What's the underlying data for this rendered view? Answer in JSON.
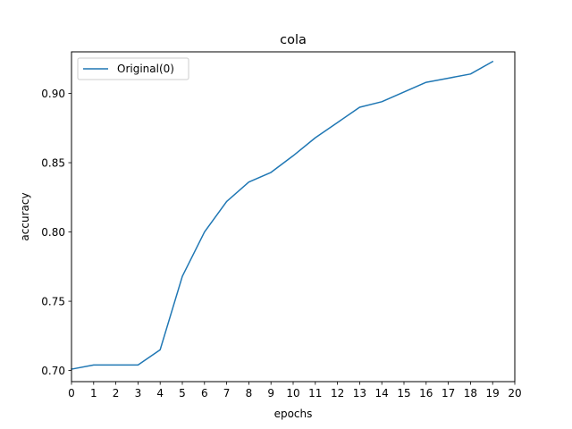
{
  "chart_data": {
    "type": "line",
    "title": "cola",
    "xlabel": "epochs",
    "ylabel": "accuracy",
    "xlim": [
      0,
      20
    ],
    "ylim": [
      0.692,
      0.93
    ],
    "xticks": [
      "0",
      "1",
      "2",
      "3",
      "4",
      "5",
      "6",
      "7",
      "8",
      "9",
      "10",
      "11",
      "12",
      "13",
      "14",
      "15",
      "16",
      "17",
      "18",
      "19",
      "20"
    ],
    "yticks": [
      "0.70",
      "0.75",
      "0.80",
      "0.85",
      "0.90"
    ],
    "grid": false,
    "legend_position": "top-left",
    "series": [
      {
        "name": "Original(0)",
        "color": "#1f77b4",
        "x": [
          0,
          1,
          2,
          3,
          4,
          5,
          6,
          7,
          8,
          9,
          10,
          11,
          12,
          13,
          14,
          15,
          16,
          17,
          18,
          19
        ],
        "y": [
          0.701,
          0.704,
          0.704,
          0.704,
          0.715,
          0.768,
          0.8,
          0.822,
          0.836,
          0.843,
          0.855,
          0.868,
          0.879,
          0.89,
          0.894,
          0.901,
          0.908,
          0.911,
          0.914,
          0.923
        ]
      }
    ]
  }
}
